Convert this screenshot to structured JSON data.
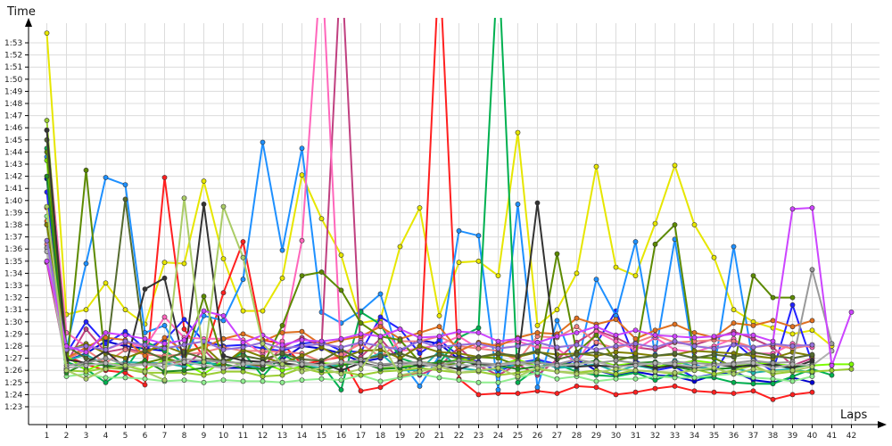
{
  "chart_data": {
    "type": "line",
    "xlabel": "Laps",
    "ylabel": "Time",
    "x": [
      1,
      2,
      3,
      4,
      5,
      6,
      7,
      8,
      9,
      10,
      11,
      12,
      13,
      14,
      15,
      16,
      17,
      18,
      19,
      20,
      21,
      22,
      23,
      24,
      25,
      26,
      27,
      28,
      29,
      30,
      31,
      32,
      33,
      34,
      35,
      36,
      37,
      38,
      39,
      40,
      41,
      42
    ],
    "xlim": [
      0.2,
      42.6
    ],
    "ylim": [
      82.0,
      115.0
    ],
    "grid": true,
    "y_tick_values": [
      83,
      84,
      85,
      86,
      87,
      88,
      89,
      90,
      91,
      92,
      93,
      94,
      95,
      96,
      97,
      98,
      99,
      100,
      101,
      102,
      103,
      104,
      105,
      106,
      107,
      108,
      109,
      110,
      111,
      112,
      113
    ],
    "y_tick_labels": [
      "1:23",
      "1:24",
      "1:25",
      "1:26",
      "1:27",
      "1:28",
      "1:29",
      "1:30",
      "1:31",
      "1:32",
      "1:33",
      "1:34",
      "1:35",
      "1:36",
      "1:37",
      "1:38",
      "1:39",
      "1:40",
      "1:41",
      "1:42",
      "1:43",
      "1:44",
      "1:45",
      "1:46",
      "1:47",
      "1:48",
      "1:49",
      "1:50",
      "1:51",
      "1:52",
      "1:53"
    ],
    "series": [
      {
        "color": "#e6e600",
        "values": [
          113.8,
          90.6,
          91.0,
          93.2,
          91.0,
          89.8,
          94.9,
          94.8,
          101.6,
          95.2,
          90.9,
          90.9,
          93.6,
          102.1,
          98.5,
          95.5,
          89.9,
          90.2,
          96.2,
          99.4,
          90.5,
          94.9,
          95.0,
          93.8,
          105.6,
          89.7,
          91.0,
          94.0,
          102.8,
          94.5,
          93.8,
          98.1,
          102.9,
          98.0,
          95.3,
          91.0,
          90.0,
          89.5,
          89.0,
          89.3,
          88.0,
          null
        ]
      },
      {
        "color": "#ff2020",
        "values": [
          99.4,
          87.2,
          86.5,
          86.0,
          85.8,
          84.8,
          101.9,
          89.4,
          87.1,
          92.4,
          96.6,
          88.5,
          88.2,
          86.5,
          86.8,
          87.1,
          84.3,
          84.6,
          85.5,
          85.8,
          120,
          85.3,
          84.0,
          84.1,
          84.1,
          84.3,
          84.1,
          84.7,
          84.6,
          84.0,
          84.2,
          84.5,
          84.7,
          84.3,
          84.2,
          84.1,
          84.3,
          83.6,
          84.0,
          84.2,
          null,
          null
        ]
      },
      {
        "color": "#0000d0",
        "values": [
          101.8,
          86.8,
          87.4,
          88.4,
          88.0,
          87.8,
          87.6,
          86.6,
          86.8,
          86.2,
          86.2,
          86.4,
          86.9,
          88.0,
          87.8,
          87.4,
          86.7,
          87.0,
          87.6,
          88.5,
          88.2,
          86.9,
          86.6,
          86.4,
          86.5,
          86.8,
          86.2,
          86.9,
          86.0,
          85.6,
          85.9,
          85.6,
          85.5,
          85.1,
          85.6,
          85.9,
          85.2,
          85.0,
          85.4,
          85.0,
          null,
          null
        ]
      },
      {
        "color": "#2222ff",
        "values": [
          100.7,
          87.4,
          90.0,
          88.2,
          89.2,
          87.8,
          88.5,
          90.2,
          88.4,
          88.0,
          88.1,
          87.8,
          87.6,
          88.2,
          88.4,
          87.6,
          87.5,
          90.4,
          89.4,
          87.4,
          88.5,
          87.2,
          86.7,
          85.9,
          86.6,
          86.9,
          86.5,
          86.9,
          88.2,
          90.9,
          86.8,
          86.0,
          86.3,
          85.4,
          85.7,
          88.4,
          87.0,
          85.9,
          91.4,
          86.6,
          null,
          null
        ]
      },
      {
        "color": "#1e90ff",
        "values": [
          103.6,
          87.8,
          94.8,
          101.9,
          101.3,
          89.1,
          89.7,
          86.8,
          90.5,
          90.1,
          93.5,
          104.8,
          95.9,
          104.3,
          90.8,
          89.9,
          90.9,
          92.3,
          86.8,
          84.7,
          87.2,
          97.5,
          97.1,
          84.4,
          99.7,
          84.6,
          90.1,
          86.1,
          93.5,
          90.5,
          96.6,
          87.3,
          96.8,
          86.5,
          86.0,
          96.2,
          86.5,
          86.7,
          86.0,
          85.8,
          null,
          null
        ]
      },
      {
        "color": "#00b050",
        "values": [
          104.3,
          86.7,
          86.1,
          85.0,
          86.1,
          88.4,
          87.6,
          86.6,
          86.6,
          86.5,
          87.5,
          85.5,
          87.3,
          86.5,
          86.5,
          84.4,
          90.8,
          89.8,
          87.0,
          86.5,
          86.6,
          88.7,
          89.5,
          120,
          85.0,
          86.2,
          86.5,
          85.9,
          85.6,
          85.5,
          85.8,
          85.2,
          85.8,
          85.4,
          85.4,
          85.0,
          84.9,
          84.9,
          85.5,
          86.1,
          85.6,
          null
        ]
      },
      {
        "color": "#c04080",
        "values": [
          94.9,
          86.6,
          89.4,
          87.5,
          87.8,
          87.5,
          87.0,
          86.3,
          87.7,
          86.1,
          86.6,
          86.3,
          87.9,
          88.7,
          88.0,
          120,
          87.1,
          88.6,
          86.8,
          85.6,
          86.3,
          87.9,
          86.4,
          85.6,
          86.5,
          85.6,
          86.9,
          88.3,
          89.3,
          88.7,
          87.9,
          87.7,
          88.3,
          88.1,
          88.6,
          89.2,
          88.6,
          87.9,
          86.4,
          87.0,
          null,
          null
        ]
      },
      {
        "color": "#ff66bb",
        "values": [
          105.8,
          89.1,
          88.0,
          87.7,
          88.3,
          87.9,
          90.4,
          88.7,
          88.6,
          88.6,
          88.5,
          87.3,
          88.4,
          96.7,
          120,
          87.0,
          88.5,
          89.9,
          87.6,
          87.8,
          88.1,
          88.8,
          87.8,
          88.2,
          88.4,
          87.9,
          87.8,
          86.6,
          89.2,
          88.4,
          87.7,
          88.7,
          87.7,
          87.5,
          88.0,
          88.6,
          87.4,
          87.4,
          88.2,
          87.9,
          null,
          null
        ]
      },
      {
        "color": "#f08080",
        "values": [
          96.4,
          86.9,
          87.7,
          86.6,
          87.7,
          87.3,
          87.2,
          87.3,
          87.5,
          87.9,
          87.6,
          87.6,
          87.5,
          87.4,
          86.7,
          87.3,
          88.2,
          87.1,
          88.4,
          88.4,
          88.8,
          88.0,
          87.8,
          87.6,
          86.8,
          88.8,
          88.7,
          89.6,
          88.3,
          87.8,
          88.3,
          88.9,
          88.3,
          88.4,
          88.5,
          88.4,
          87.9,
          88.1,
          87.8,
          88.1,
          null,
          null
        ]
      },
      {
        "color": "#e07020",
        "values": [
          98.3,
          87.0,
          87.9,
          88.7,
          88.5,
          87.2,
          88.7,
          87.6,
          87.9,
          88.6,
          89.0,
          88.4,
          89.1,
          89.2,
          88.1,
          88.5,
          88.8,
          89.6,
          88.6,
          89.1,
          89.6,
          87.6,
          88.3,
          88.0,
          88.7,
          89.1,
          89.0,
          90.3,
          89.8,
          90.2,
          88.6,
          89.3,
          89.8,
          89.1,
          88.7,
          89.9,
          89.7,
          90.1,
          89.6,
          90.1,
          null,
          null
        ]
      },
      {
        "color": "#20b2aa",
        "values": [
          98.0,
          86.8,
          87.3,
          86.4,
          86.7,
          86.6,
          86.6,
          86.3,
          86.8,
          86.2,
          86.5,
          86.1,
          86.5,
          86.4,
          86.2,
          86.5,
          86.8,
          87.4,
          86.0,
          86.0,
          87.6,
          86.2,
          86.0,
          86.1,
          86.5,
          86.8,
          86.2,
          86.3,
          86.5,
          85.9,
          86.4,
          86.1,
          86.8,
          86.3,
          86.1,
          86.2,
          85.8,
          86.0,
          86.1,
          85.8,
          null,
          null
        ]
      },
      {
        "color": "#7cfc00",
        "values": [
          103.3,
          87.2,
          86.0,
          86.6,
          86.4,
          86.0,
          86.9,
          86.6,
          85.7,
          86.8,
          86.5,
          86.6,
          86.0,
          86.3,
          86.6,
          86.5,
          86.7,
          86.2,
          86.2,
          86.7,
          86.3,
          87.0,
          86.6,
          86.4,
          86.9,
          86.3,
          86.5,
          86.5,
          86.8,
          86.4,
          86.6,
          86.3,
          86.5,
          86.8,
          86.6,
          86.3,
          86.6,
          86.5,
          86.4,
          86.4,
          86.5,
          86.5
        ]
      },
      {
        "color": "#90ee90",
        "values": [
          98.7,
          85.5,
          85.7,
          85.4,
          85.4,
          85.3,
          85.1,
          85.2,
          85.0,
          85.2,
          85.1,
          85.1,
          85.0,
          85.2,
          85.3,
          85.2,
          85.6,
          85.1,
          85.4,
          85.7,
          85.4,
          85.2,
          85.0,
          85.0,
          85.4,
          85.8,
          85.3,
          85.5,
          85.1,
          85.3,
          85.3,
          85.5,
          85.4,
          85.4,
          85.6,
          85.7,
          85.4,
          85.3,
          85.1,
          85.5,
          null,
          null
        ]
      },
      {
        "color": "#9acd32",
        "values": [
          106.6,
          86.0,
          85.9,
          86.2,
          86.1,
          85.8,
          85.8,
          85.8,
          85.6,
          85.9,
          85.9,
          85.5,
          85.6,
          86.2,
          85.8,
          85.9,
          85.6,
          85.9,
          86.0,
          86.2,
          86.0,
          85.8,
          85.9,
          85.6,
          85.8,
          86.1,
          85.9,
          85.8,
          86.0,
          85.7,
          86.0,
          85.9,
          85.7,
          86.1,
          85.7,
          86.0,
          86.4,
          85.7,
          85.9,
          85.9,
          86.0,
          86.1
        ]
      },
      {
        "color": "#5c8a00",
        "values": [
          104.0,
          86.1,
          102.5,
          86.3,
          86.2,
          86.6,
          87.0,
          86.6,
          92.1,
          86.7,
          86.6,
          86.4,
          89.7,
          93.8,
          94.1,
          92.6,
          89.9,
          88.8,
          88.5,
          86.7,
          86.5,
          86.5,
          87.1,
          87.0,
          86.4,
          86.7,
          95.6,
          87.5,
          88.9,
          86.8,
          87.2,
          96.4,
          98.0,
          87.1,
          87.0,
          86.3,
          93.8,
          92.0,
          92.0,
          null,
          null,
          null
        ]
      },
      {
        "color": "#228b22",
        "values": [
          102.0,
          85.8,
          86.6,
          86.4,
          86.2,
          86.8,
          85.9,
          86.0,
          86.2,
          86.5,
          86.2,
          86.1,
          86.5,
          86.4,
          86.0,
          86.4,
          86.7,
          86.1,
          86.2,
          86.4,
          86.7,
          86.8,
          86.5,
          86.4,
          86.1,
          86.3,
          86.5,
          86.5,
          86.8,
          86.2,
          86.6,
          86.7,
          86.3,
          86.0,
          86.1,
          86.2,
          86.5,
          86.4,
          86.2,
          86.5,
          null,
          null
        ]
      },
      {
        "color": "#808000",
        "values": [
          98.0,
          87.6,
          88.2,
          87.4,
          87.0,
          87.6,
          88.0,
          87.4,
          88.0,
          86.5,
          87.7,
          87.1,
          86.6,
          87.2,
          87.9,
          87.0,
          87.6,
          87.7,
          87.0,
          88.0,
          87.5,
          87.4,
          87.1,
          87.3,
          87.1,
          87.5,
          87.3,
          87.4,
          87.2,
          87.5,
          87.4,
          87.2,
          87.3,
          87.6,
          87.5,
          87.4,
          87.2,
          87.0,
          87.5,
          87.2,
          null,
          null
        ]
      },
      {
        "color": "#556b2f",
        "values": [
          105.0,
          88.0,
          87.0,
          86.6,
          100.1,
          87.6,
          86.9,
          87.5,
          87.0,
          86.8,
          87.2,
          86.9,
          87.4,
          86.9,
          86.8,
          87.7,
          86.9,
          87.2,
          87.4,
          86.9,
          87.3,
          87.0,
          87.1,
          87.4,
          87.2,
          87.6,
          86.9,
          87.3,
          87.5,
          87.1,
          87.0,
          87.2,
          87.4,
          87.0,
          87.3,
          87.1,
          87.5,
          87.2,
          87.0,
          87.3,
          null,
          null
        ]
      },
      {
        "color": "#333333",
        "values": [
          105.8,
          86.9,
          86.6,
          87.6,
          86.2,
          92.7,
          93.6,
          86.6,
          99.7,
          87.2,
          86.8,
          86.7,
          86.6,
          86.4,
          86.6,
          86.0,
          86.6,
          86.3,
          86.7,
          86.4,
          86.4,
          86.1,
          86.6,
          86.3,
          86.7,
          99.8,
          86.5,
          86.3,
          86.4,
          86.3,
          86.5,
          86.2,
          86.4,
          86.2,
          86.5,
          86.3,
          86.4,
          86.5,
          86.2,
          86.8,
          null,
          null
        ]
      },
      {
        "color": "#999999",
        "values": [
          96.1,
          86.4,
          86.6,
          87.0,
          86.5,
          86.5,
          86.6,
          86.9,
          86.8,
          86.7,
          86.6,
          86.5,
          86.8,
          86.7,
          86.4,
          86.6,
          86.9,
          86.5,
          86.6,
          86.7,
          86.4,
          86.8,
          86.6,
          86.5,
          86.7,
          86.6,
          86.5,
          86.9,
          86.6,
          86.8,
          86.6,
          86.5,
          86.7,
          86.6,
          86.5,
          86.6,
          86.8,
          86.6,
          86.7,
          94.3,
          88.2,
          null
        ]
      },
      {
        "color": "#b0b0b0",
        "values": [
          95.8,
          86.2,
          86.4,
          86.6,
          86.3,
          86.5,
          86.3,
          86.7,
          86.4,
          86.2,
          86.5,
          86.6,
          86.3,
          86.5,
          86.4,
          86.7,
          86.5,
          86.3,
          86.4,
          86.6,
          86.2,
          86.5,
          86.3,
          86.4,
          86.6,
          86.3,
          86.4,
          86.5,
          86.7,
          86.3,
          86.4,
          86.6,
          86.5,
          86.3,
          86.4,
          86.5,
          86.6,
          86.2,
          86.5,
          86.4,
          87.6,
          null
        ]
      },
      {
        "color": "#9370db",
        "values": [
          96.7,
          87.7,
          88.0,
          87.7,
          88.4,
          88.1,
          87.8,
          88.1,
          88.4,
          87.7,
          87.9,
          88.3,
          87.8,
          88.0,
          88.2,
          87.9,
          88.3,
          88.0,
          87.7,
          88.4,
          87.9,
          88.1,
          88.2,
          87.8,
          88.0,
          88.3,
          87.9,
          88.1,
          87.7,
          88.0,
          88.2,
          87.9,
          88.4,
          88.0,
          87.8,
          88.1,
          87.9,
          88.2,
          88.0,
          88.1,
          null,
          null
        ]
      },
      {
        "color": "#cc44ff",
        "values": [
          95.0,
          88.0,
          87.5,
          89.1,
          88.9,
          88.6,
          88.2,
          88.5,
          90.9,
          90.5,
          88.3,
          88.9,
          88.1,
          88.5,
          88.4,
          88.6,
          89.0,
          88.8,
          89.4,
          88.7,
          88.8,
          89.2,
          89.1,
          88.4,
          88.6,
          88.3,
          88.8,
          89.1,
          89.6,
          88.9,
          89.3,
          88.9,
          88.8,
          88.7,
          88.8,
          89.0,
          88.9,
          88.4,
          99.3,
          99.4,
          86.4,
          90.8
        ]
      },
      {
        "color": "#aacc66",
        "values": [
          99.5,
          86.0,
          85.3,
          86.1,
          86.4,
          85.9,
          85.2,
          100.2,
          86.7,
          99.5,
          95.3,
          88.2,
          86.5,
          85.9,
          86.2,
          85.7,
          86.1,
          88.4,
          85.6,
          85.9,
          86.3,
          85.8,
          86.0,
          86.2,
          85.5,
          86.2,
          85.9,
          85.7,
          85.8,
          86.1,
          86.0,
          85.9,
          85.8,
          86.0,
          86.2,
          85.7,
          86.1,
          85.9,
          86.0,
          86.3,
          null,
          null
        ]
      }
    ]
  }
}
